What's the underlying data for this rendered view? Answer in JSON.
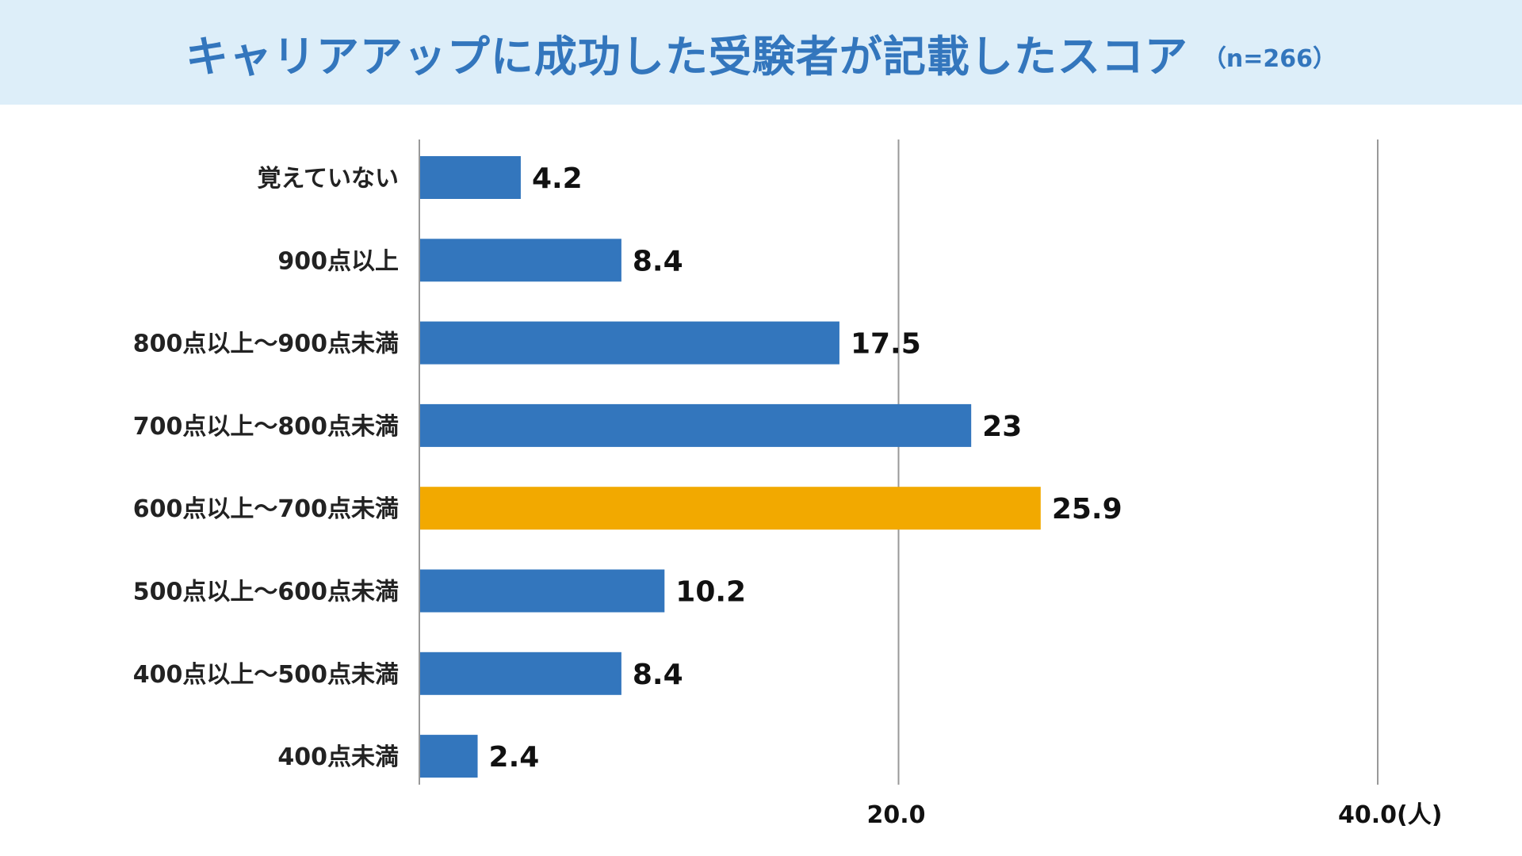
{
  "chart_data": {
    "type": "bar",
    "orientation": "horizontal",
    "title": "キャリアアップに成功した受験者が記載したスコア",
    "subtitle": "（n=266）",
    "categories": [
      "覚えていない",
      "900点以上",
      "800点以上〜900点未満",
      "700点以上〜800点未満",
      "600点以上〜700点未満",
      "500点以上〜600点未満",
      "400点以上〜500点未満",
      "400点未満"
    ],
    "values": [
      4.2,
      8.4,
      17.5,
      23,
      25.9,
      10.2,
      8.4,
      2.4
    ],
    "value_labels": [
      "4.2",
      "8.4",
      "17.5",
      "23",
      "25.9",
      "10.2",
      "8.4",
      "2.4"
    ],
    "xlim": [
      0,
      40
    ],
    "x_ticks": [
      20,
      40
    ],
    "x_tick_labels": [
      "20.0",
      "40.0(人)"
    ],
    "grid": true,
    "colors": {
      "bar": "#3376bd",
      "highlight": "#f2a900",
      "title": "#3376bd",
      "title_band": "#ddeef9",
      "grid": "#999999"
    },
    "highlight_index": 4
  }
}
